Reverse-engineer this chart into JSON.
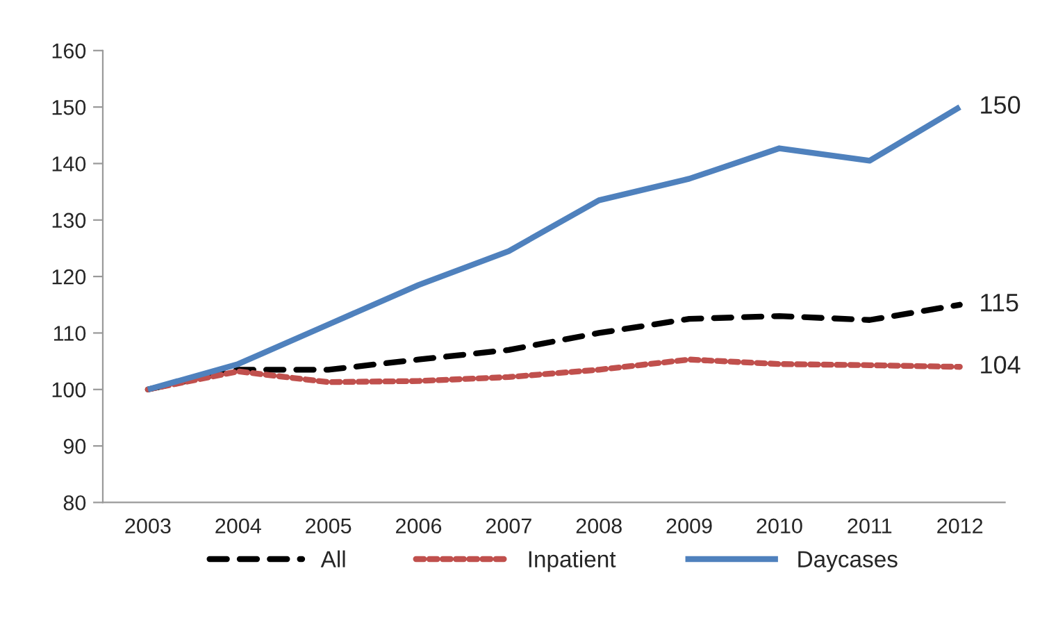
{
  "chart_data": {
    "type": "line",
    "categories": [
      "2003",
      "2004",
      "2005",
      "2006",
      "2007",
      "2008",
      "2009",
      "2010",
      "2011",
      "2012"
    ],
    "series": [
      {
        "name": "All",
        "color": "#000000",
        "line_style": "dashed",
        "values": [
          100,
          103.5,
          103.5,
          105.3,
          107,
          110,
          112.5,
          113,
          112.3,
          115
        ],
        "value_labels": [
          null,
          null,
          null,
          null,
          null,
          null,
          null,
          null,
          null,
          "115"
        ]
      },
      {
        "name": "Inpatient",
        "color": "#c0504d",
        "line_style": "dotted",
        "values": [
          100,
          103.2,
          101.3,
          101.5,
          102.2,
          103.5,
          105.3,
          104.5,
          104.3,
          104
        ],
        "value_labels": [
          null,
          null,
          null,
          null,
          null,
          null,
          null,
          null,
          null,
          "104"
        ]
      },
      {
        "name": "Daycases",
        "color": "#4f81bd",
        "line_style": "solid",
        "values": [
          100,
          104.5,
          111.5,
          118.5,
          124.5,
          133.5,
          137.3,
          142.7,
          140.5,
          150
        ],
        "value_labels": [
          null,
          null,
          null,
          null,
          null,
          null,
          null,
          null,
          null,
          "150"
        ]
      }
    ],
    "ylim": [
      80,
      160
    ],
    "yticks": [
      80,
      90,
      100,
      110,
      120,
      130,
      140,
      150,
      160
    ],
    "grid": false,
    "legend": "bottom",
    "marker": "none"
  }
}
